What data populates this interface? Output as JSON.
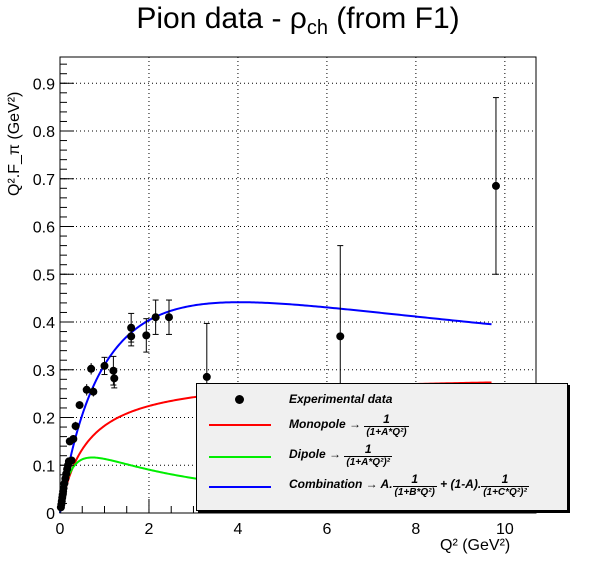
{
  "title": "Pion data - ρ",
  "title_sub": "ch",
  "title_suffix": " (from F1)",
  "chart_data": {
    "type": "scatter",
    "xlabel": "Q² (GeV²)",
    "ylabel": "Q².F_π (GeV²)",
    "xlim": [
      0,
      10.7
    ],
    "ylim": [
      0,
      0.955
    ],
    "grid": true,
    "x_ticks": [
      "0",
      "2",
      "4",
      "6",
      "8",
      "10"
    ],
    "y_ticks": [
      "0",
      "0.1",
      "0.2",
      "0.3",
      "0.4",
      "0.5",
      "0.6",
      "0.7",
      "0.8",
      "0.9"
    ],
    "points": [
      {
        "x": 0.02,
        "y": 0.012,
        "err": 0.003
      },
      {
        "x": 0.03,
        "y": 0.018,
        "err": 0.003
      },
      {
        "x": 0.04,
        "y": 0.025,
        "err": 0.004
      },
      {
        "x": 0.05,
        "y": 0.032,
        "err": 0.004
      },
      {
        "x": 0.06,
        "y": 0.038,
        "err": 0.004
      },
      {
        "x": 0.07,
        "y": 0.045,
        "err": 0.005
      },
      {
        "x": 0.08,
        "y": 0.052,
        "err": 0.005
      },
      {
        "x": 0.1,
        "y": 0.062,
        "err": 0.005
      },
      {
        "x": 0.12,
        "y": 0.072,
        "err": 0.006
      },
      {
        "x": 0.14,
        "y": 0.082,
        "err": 0.006
      },
      {
        "x": 0.16,
        "y": 0.092,
        "err": 0.006
      },
      {
        "x": 0.18,
        "y": 0.1,
        "err": 0.007
      },
      {
        "x": 0.2,
        "y": 0.108,
        "err": 0.007
      },
      {
        "x": 0.22,
        "y": 0.15,
        "err": 0.008
      },
      {
        "x": 0.26,
        "y": 0.11,
        "err": 0.008
      },
      {
        "x": 0.3,
        "y": 0.155,
        "err": 0.008
      },
      {
        "x": 0.35,
        "y": 0.182,
        "err": 0.009
      },
      {
        "x": 0.44,
        "y": 0.226,
        "err": 0.008
      },
      {
        "x": 0.6,
        "y": 0.258,
        "err": 0.012
      },
      {
        "x": 0.7,
        "y": 0.302,
        "err": 0.012
      },
      {
        "x": 0.75,
        "y": 0.254,
        "err": 0.01
      },
      {
        "x": 1.0,
        "y": 0.308,
        "err": 0.018
      },
      {
        "x": 1.2,
        "y": 0.298,
        "err": 0.03
      },
      {
        "x": 1.22,
        "y": 0.282,
        "err": 0.02
      },
      {
        "x": 1.6,
        "y": 0.388,
        "err": 0.03
      },
      {
        "x": 1.6,
        "y": 0.37,
        "err": 0.02
      },
      {
        "x": 1.94,
        "y": 0.372,
        "err": 0.035
      },
      {
        "x": 2.15,
        "y": 0.41,
        "err": 0.036
      },
      {
        "x": 2.45,
        "y": 0.41,
        "err": 0.036
      },
      {
        "x": 3.3,
        "y": 0.285,
        "err": 0.112
      },
      {
        "x": 6.3,
        "y": 0.37,
        "err": 0.19
      },
      {
        "x": 9.8,
        "y": 0.685,
        "err": 0.185
      }
    ],
    "series": [
      {
        "name": "Monopole",
        "color": "#ff0000",
        "kind": "monopole",
        "A": 1.7,
        "scale": 0.29,
        "x_max": 9.7
      },
      {
        "name": "Dipole",
        "color": "#00ee00",
        "kind": "dipole",
        "A": 1.38,
        "scale": 0.465,
        "x_max": 9.7
      },
      {
        "name": "Combination",
        "color": "#0000ff",
        "kind": "combination",
        "scale": 0.6,
        "B": 1.35,
        "C": 0.3,
        "mix": 0.45,
        "x_max": 9.7
      }
    ]
  },
  "legend": {
    "data_label": "Experimental data",
    "monopole_label": "Monopole →",
    "monopole_num": "1",
    "monopole_den": "(1+A*Q²)",
    "dipole_label": "Dipole →",
    "dipole_num": "1",
    "dipole_den": "(1+A*Q²)²",
    "comb_label": "Combination → A.",
    "comb_num1": "1",
    "comb_den1": "(1+B*Q²)",
    "comb_mid": " + (1-A).",
    "comb_num2": "1",
    "comb_den2": "(1+C*Q²)²"
  }
}
